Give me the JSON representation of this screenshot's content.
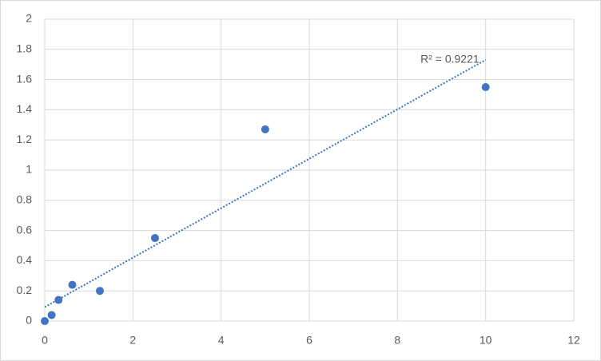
{
  "chart_data": {
    "type": "scatter",
    "x": [
      0,
      0.156,
      0.3125,
      0.625,
      1.25,
      2.5,
      5,
      10
    ],
    "series": [
      {
        "color": "#4472c4",
        "values": [
          0,
          0.04,
          0.14,
          0.24,
          0.2,
          0.55,
          1.27,
          1.55
        ]
      }
    ],
    "xlim": [
      0,
      12
    ],
    "xticks": [
      0,
      2,
      4,
      6,
      8,
      10,
      12
    ],
    "ylim": [
      0,
      2
    ],
    "yticks": [
      0,
      0.2,
      0.4,
      0.6,
      0.8,
      1,
      1.2,
      1.4,
      1.6,
      1.8,
      2
    ],
    "grid": true,
    "trendline": "linear",
    "annotation": "R² = 0.9221"
  }
}
